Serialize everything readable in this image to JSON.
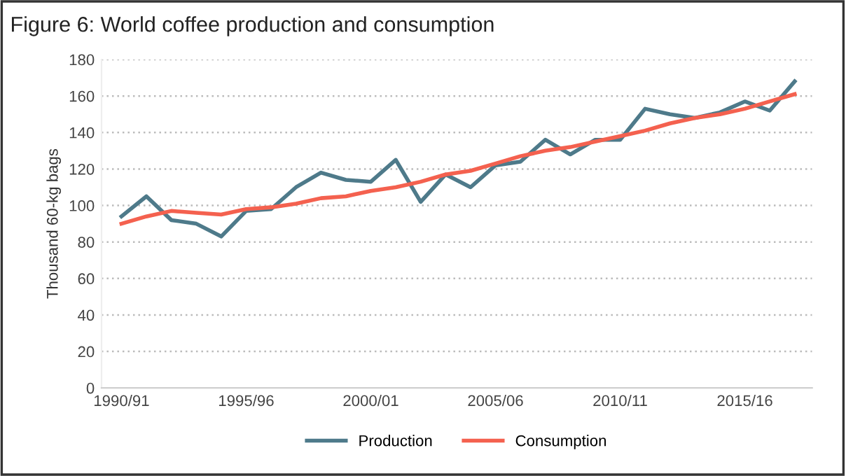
{
  "chart_data": {
    "type": "line",
    "title": "Figure 6: World coffee production and consumption",
    "ylabel": "Thousand 60-kg bags",
    "categories": [
      "1990/91",
      null,
      null,
      null,
      null,
      "1995/96",
      null,
      null,
      null,
      null,
      "2000/01",
      null,
      null,
      null,
      null,
      "2005/06",
      null,
      null,
      null,
      null,
      "2010/11",
      null,
      null,
      null,
      null,
      "2015/16",
      null,
      null
    ],
    "series": [
      {
        "name": "Production",
        "color": "#4e7a8a",
        "values": [
          94,
          105,
          92,
          90,
          83,
          97,
          98,
          110,
          118,
          114,
          113,
          125,
          102,
          117,
          110,
          122,
          124,
          136,
          128,
          136,
          136,
          153,
          150,
          148,
          151,
          157,
          152,
          168
        ]
      },
      {
        "name": "Consumption",
        "color": "#f4614f",
        "values": [
          90,
          94,
          97,
          96,
          95,
          98,
          99,
          101,
          104,
          105,
          108,
          110,
          113,
          117,
          119,
          123,
          127,
          130,
          132,
          135,
          138,
          141,
          145,
          148,
          150,
          153,
          157,
          161
        ]
      }
    ],
    "ylim": [
      0,
      180
    ],
    "yticks": [
      0,
      20,
      40,
      60,
      80,
      100,
      120,
      140,
      160,
      180
    ],
    "grid": "y",
    "legend": "bottom",
    "marker": "none",
    "line_style": "solid"
  }
}
